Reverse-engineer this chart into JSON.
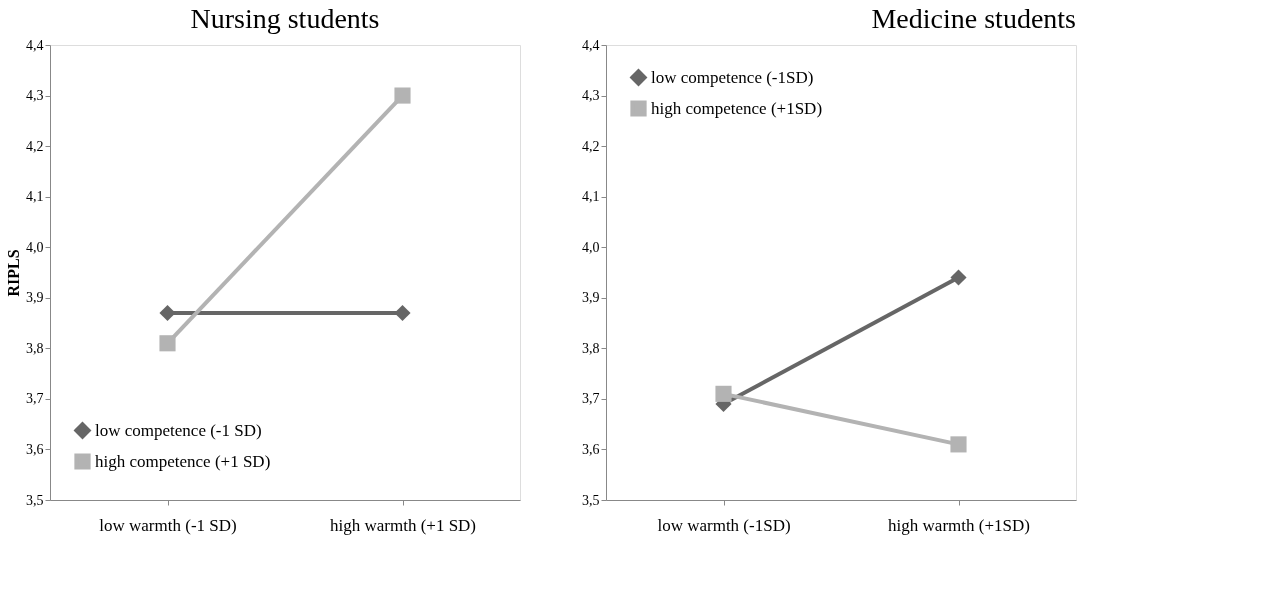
{
  "chart_data": [
    {
      "type": "line",
      "title": "Nursing students",
      "ylabel": "RIPLS",
      "categories": [
        "low warmth (-1 SD)",
        "high warmth (+1 SD)"
      ],
      "ylim": [
        3.5,
        4.4
      ],
      "yticks": [
        {
          "value": 3.5,
          "label": "3,5"
        },
        {
          "value": 3.6,
          "label": "3,6"
        },
        {
          "value": 3.7,
          "label": "3,7"
        },
        {
          "value": 3.8,
          "label": "3,8"
        },
        {
          "value": 3.9,
          "label": "3,9"
        },
        {
          "value": 4.0,
          "label": "4,0"
        },
        {
          "value": 4.1,
          "label": "4,1"
        },
        {
          "value": 4.2,
          "label": "4,2"
        },
        {
          "value": 4.3,
          "label": "4,3"
        },
        {
          "value": 4.4,
          "label": "4,4"
        }
      ],
      "grid": false,
      "legend": "bottom left",
      "line_style": "solid",
      "series": [
        {
          "name": "low competence (-1 SD)",
          "color": "#666666",
          "marker": "diamond",
          "values": [
            3.87,
            3.87
          ]
        },
        {
          "name": "high competence (+1 SD)",
          "color": "#b3b3b3",
          "marker": "square",
          "values": [
            3.81,
            4.3
          ]
        }
      ]
    },
    {
      "type": "line",
      "title": "Medicine students",
      "categories": [
        "low warmth (-1SD)",
        "high warmth (+1SD)"
      ],
      "ylim": [
        3.5,
        4.4
      ],
      "yticks": [
        {
          "value": 3.5,
          "label": "3,5"
        },
        {
          "value": 3.6,
          "label": "3,6"
        },
        {
          "value": 3.7,
          "label": "3,7"
        },
        {
          "value": 3.8,
          "label": "3,8"
        },
        {
          "value": 3.9,
          "label": "3,9"
        },
        {
          "value": 4.0,
          "label": "4,0"
        },
        {
          "value": 4.1,
          "label": "4,1"
        },
        {
          "value": 4.2,
          "label": "4,2"
        },
        {
          "value": 4.3,
          "label": "4,3"
        },
        {
          "value": 4.4,
          "label": "4,4"
        }
      ],
      "grid": false,
      "legend": "top left",
      "line_style": "solid",
      "series": [
        {
          "name": "low competence (-1SD)",
          "color": "#666666",
          "marker": "diamond",
          "values": [
            3.69,
            3.94
          ]
        },
        {
          "name": "high competence (+1SD)",
          "color": "#b3b3b3",
          "marker": "square",
          "values": [
            3.71,
            3.61
          ]
        }
      ]
    }
  ]
}
